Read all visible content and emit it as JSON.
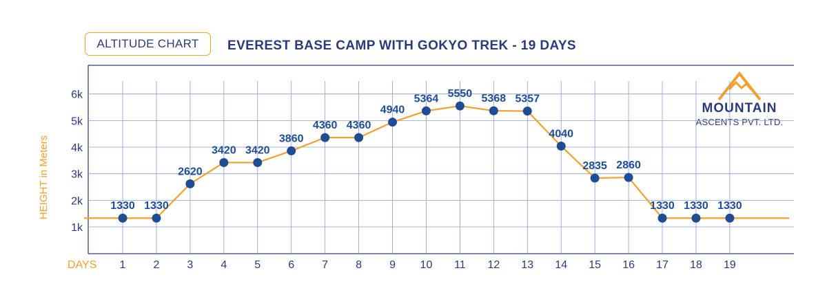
{
  "badge": "ALTITUDE CHART",
  "title": "EVEREST BASE CAMP WITH GOKYO TREK - 19 DAYS",
  "brand": {
    "name": "MOUNTAIN",
    "sub": "ASCENTS PVT. LTD.",
    "logo_icon": "mountain-logo-icon"
  },
  "colors": {
    "line": "#f3a12c",
    "point": "#1e4d96",
    "grid": "#8e9bcf",
    "text": "#2a3a7a",
    "axis_label": "#f3a12c"
  },
  "chart_data": {
    "type": "line",
    "title": "EVEREST BASE CAMP WITH GOKYO TREK - 19 DAYS",
    "xlabel": "DAYS",
    "ylabel": "HEIGHT in Meters",
    "x": [
      1,
      2,
      3,
      4,
      5,
      6,
      7,
      8,
      9,
      10,
      11,
      12,
      13,
      14,
      15,
      16,
      17,
      18,
      19
    ],
    "y_ticks": [
      "1k",
      "2k",
      "3k",
      "4k",
      "5k",
      "6k"
    ],
    "ylim": [
      1000,
      6000
    ],
    "grid": true,
    "series": [
      {
        "values": [
          1330,
          1330,
          2620,
          3420,
          3420,
          3860,
          4360,
          4360,
          4940,
          5364,
          5550,
          5368,
          5357,
          4040,
          2835,
          2860,
          1330,
          1330,
          1330
        ],
        "labels": [
          "1330",
          "1330",
          "2620",
          "3420",
          "3420",
          "3860",
          "4360",
          "4360",
          "4940",
          "5364",
          "5550",
          "5368",
          "5357",
          "4040",
          "2835",
          "2860",
          "1330",
          "1330",
          "1330"
        ]
      }
    ]
  }
}
